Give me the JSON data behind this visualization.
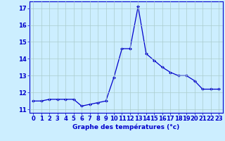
{
  "hours": [
    0,
    1,
    2,
    3,
    4,
    5,
    6,
    7,
    8,
    9,
    10,
    11,
    12,
    13,
    14,
    15,
    16,
    17,
    18,
    19,
    20,
    21,
    22,
    23
  ],
  "temps": [
    11.5,
    11.5,
    11.6,
    11.6,
    11.6,
    11.6,
    11.2,
    11.3,
    11.4,
    11.5,
    12.9,
    14.6,
    14.6,
    17.1,
    14.3,
    13.9,
    13.5,
    13.2,
    13.0,
    13.0,
    12.7,
    12.2,
    12.2,
    12.2
  ],
  "line_color": "#0000cc",
  "marker": "D",
  "marker_size": 2.0,
  "bg_color": "#cceeff",
  "grid_color": "#aacccc",
  "xlabel": "Graphe des températures (°c)",
  "xlabel_color": "#0000cc",
  "xlabel_fontsize": 6.5,
  "tick_color": "#0000cc",
  "tick_fontsize": 6.0,
  "ylim": [
    10.8,
    17.4
  ],
  "yticks": [
    11,
    12,
    13,
    14,
    15,
    16,
    17
  ],
  "xlim": [
    -0.5,
    23.5
  ],
  "xticks": [
    0,
    1,
    2,
    3,
    4,
    5,
    6,
    7,
    8,
    9,
    10,
    11,
    12,
    13,
    14,
    15,
    16,
    17,
    18,
    19,
    20,
    21,
    22,
    23
  ]
}
